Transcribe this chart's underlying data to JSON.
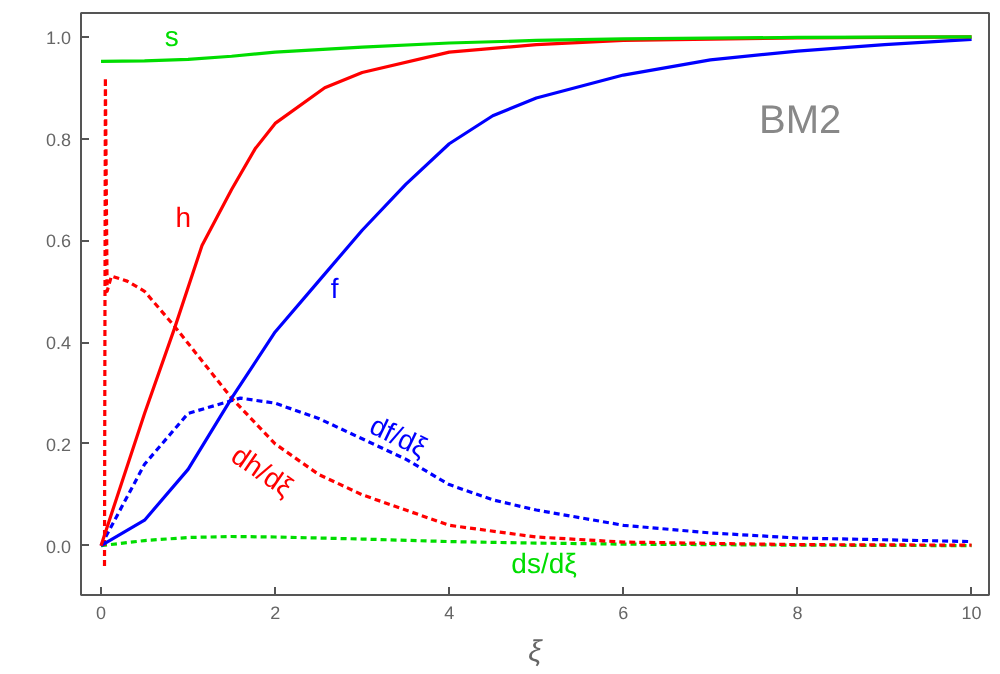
{
  "chart_data": {
    "type": "line",
    "xlabel": "ξ",
    "xlim": [
      -0.23,
      10.2
    ],
    "ylim": [
      -0.097,
      1.047
    ],
    "xticks": [
      0,
      2,
      4,
      6,
      8,
      10
    ],
    "yticks": [
      {
        "value": 0,
        "label": "0.0"
      },
      {
        "value": 0.2,
        "label": "0.2"
      },
      {
        "value": 0.4,
        "label": "0.4"
      },
      {
        "value": 0.6,
        "label": "0.6"
      },
      {
        "value": 0.8,
        "label": "0.8"
      },
      {
        "value": 1,
        "label": "1.0"
      }
    ],
    "grid": false,
    "legend": false,
    "marker": "none",
    "series": [
      {
        "name": "s",
        "color": "#00dd00",
        "line_style": "solid",
        "x": [
          0,
          0.5,
          1,
          1.5,
          2,
          3,
          4,
          5,
          6,
          8,
          10
        ],
        "values": [
          0.952,
          0.953,
          0.956,
          0.962,
          0.97,
          0.98,
          0.988,
          0.993,
          0.996,
          0.999,
          1.0
        ]
      },
      {
        "name": "h",
        "color": "#ff0000",
        "line_style": "solid",
        "x": [
          0,
          0.5,
          0.85,
          1.16,
          1.5,
          1.77,
          2,
          2.57,
          3,
          4,
          5,
          6,
          8,
          10
        ],
        "values": [
          0,
          0.26,
          0.43,
          0.59,
          0.7,
          0.78,
          0.83,
          0.9,
          0.93,
          0.97,
          0.985,
          0.993,
          0.998,
          1.0
        ]
      },
      {
        "name": "f",
        "color": "#0000ff",
        "line_style": "solid",
        "x": [
          0,
          0.5,
          1,
          1.5,
          2,
          2.5,
          3,
          3.5,
          4,
          4.5,
          5,
          6,
          7,
          8,
          9,
          10
        ],
        "values": [
          0,
          0.05,
          0.15,
          0.29,
          0.42,
          0.52,
          0.62,
          0.71,
          0.79,
          0.845,
          0.88,
          0.925,
          0.955,
          0.972,
          0.985,
          0.995
        ]
      },
      {
        "name": "df/dξ",
        "color": "#0000ff",
        "line_style": "dashed",
        "x": [
          0,
          0.25,
          0.5,
          1,
          1.6,
          2,
          2.5,
          3,
          3.5,
          4,
          4.5,
          5,
          6,
          7,
          8,
          10
        ],
        "values": [
          0,
          0.08,
          0.16,
          0.26,
          0.29,
          0.28,
          0.25,
          0.21,
          0.17,
          0.12,
          0.09,
          0.07,
          0.04,
          0.025,
          0.015,
          0.008
        ]
      },
      {
        "name": "dh/dξ",
        "color": "#ff0000",
        "line_style": "dashed",
        "x": [
          0.04,
          0.05,
          0.07,
          0.12,
          0.3,
          0.5,
          0.85,
          1.5,
          2,
          2.5,
          3,
          4,
          5,
          6,
          8,
          10
        ],
        "values": [
          -0.04,
          0.92,
          0.5,
          0.53,
          0.52,
          0.5,
          0.43,
          0.29,
          0.2,
          0.14,
          0.1,
          0.04,
          0.017,
          0.007,
          0.002,
          0.001
        ]
      },
      {
        "name": "ds/dξ",
        "color": "#00dd00",
        "line_style": "dashed",
        "x": [
          0,
          0.5,
          1,
          1.5,
          2,
          3,
          4,
          5,
          6,
          8,
          10
        ],
        "values": [
          0,
          0.01,
          0.016,
          0.018,
          0.017,
          0.013,
          0.008,
          0.005,
          0.003,
          0.001,
          0.0
        ]
      }
    ],
    "annotations": [
      "BM2"
    ]
  }
}
